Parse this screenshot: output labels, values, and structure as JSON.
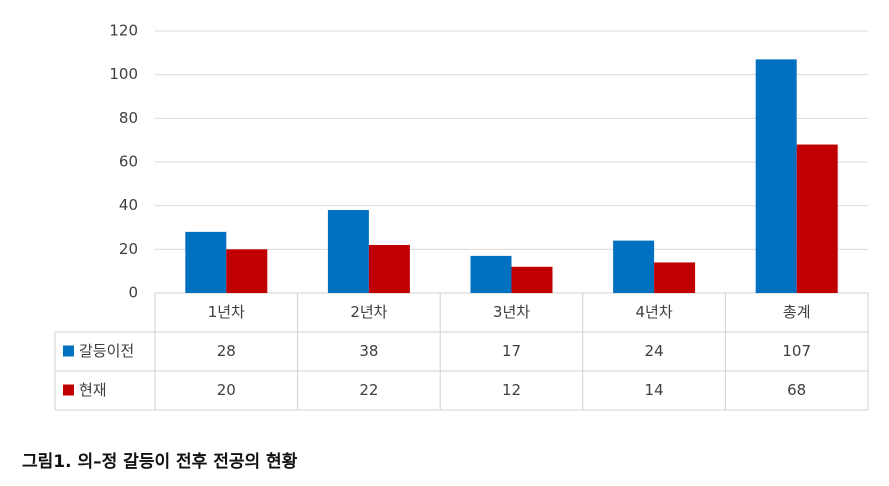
{
  "chart_data": {
    "type": "bar",
    "caption": "그림1. 의–정 갈등이 전후 전공의 현황",
    "categories": [
      "1년차",
      "2년차",
      "3년차",
      "4년차",
      "총계"
    ],
    "series": [
      {
        "name": "갈등이전",
        "color": "#0070c0",
        "values": [
          28,
          38,
          17,
          24,
          107
        ]
      },
      {
        "name": "현재",
        "color": "#c00000",
        "values": [
          20,
          22,
          12,
          14,
          68
        ]
      }
    ],
    "ylim": [
      0,
      120
    ],
    "yticks": [
      0,
      20,
      40,
      60,
      80,
      100,
      120
    ],
    "grid": true
  }
}
